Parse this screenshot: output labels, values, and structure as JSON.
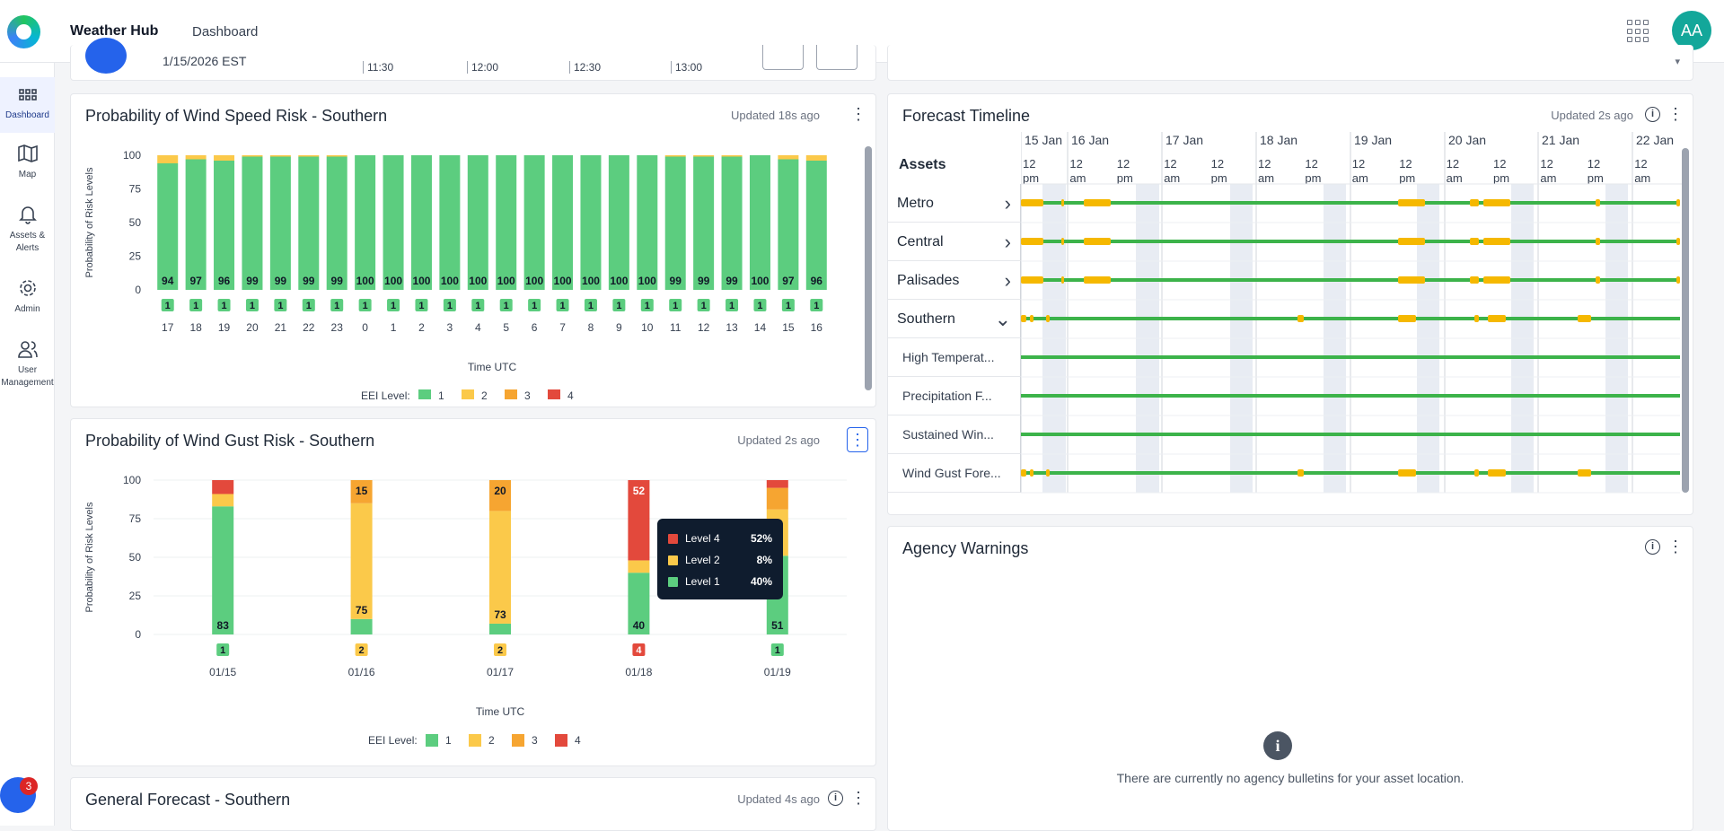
{
  "app": {
    "title": "Weather Hub",
    "breadcrumb": "Dashboard",
    "avatar_initials": "AA",
    "notification_count": "3"
  },
  "sidebar": {
    "items": [
      {
        "label": "Dashboard",
        "icon": "dashboard-grid-icon",
        "active": true
      },
      {
        "label": "Map",
        "icon": "map-icon"
      },
      {
        "label": "Assets & Alerts",
        "icon": "bell-icon"
      },
      {
        "label": "Admin",
        "icon": "gear-icon"
      },
      {
        "label": "User Management",
        "icon": "users-icon"
      }
    ]
  },
  "top_strip": {
    "date": "1/15/2026 EST",
    "times": [
      "11:30",
      "12:00",
      "12:30",
      "13:00"
    ]
  },
  "colors": {
    "level1": "#5ccd7f",
    "level2": "#fbc94a",
    "level3": "#f6a531",
    "level4": "#e3493c",
    "accent": "#2563eb",
    "avatar": "#13a79a"
  },
  "wind_speed": {
    "title": "Probability of Wind Speed Risk - Southern",
    "updated": "Updated 18s ago",
    "ylabel": "Probability of Risk Levels",
    "xlabel": "Time UTC",
    "legend_title": "EEI Level:",
    "legend": [
      "1",
      "2",
      "3",
      "4"
    ]
  },
  "wind_gust": {
    "title": "Probability of Wind Gust Risk - Southern",
    "updated": "Updated 2s ago",
    "ylabel": "Probability of Risk Levels",
    "xlabel": "Time UTC",
    "legend_title": "EEI Level:",
    "legend": [
      "1",
      "2",
      "3",
      "4"
    ],
    "tooltip": [
      {
        "label": "Level 4",
        "value": "52%",
        "level": 4
      },
      {
        "label": "Level 2",
        "value": "8%",
        "level": 2
      },
      {
        "label": "Level 1",
        "value": "40%",
        "level": 1
      }
    ]
  },
  "general_forecast": {
    "title": "General Forecast - Southern",
    "updated": "Updated 4s ago"
  },
  "forecast_timeline": {
    "title": "Forecast Timeline",
    "updated": "Updated 2s ago",
    "assets_header": "Assets",
    "days": [
      "15 Jan",
      "16 Jan",
      "17 Jan",
      "18 Jan",
      "19 Jan",
      "20 Jan",
      "21 Jan",
      "22 Jan"
    ],
    "assets": [
      {
        "label": "Metro",
        "expand": "›"
      },
      {
        "label": "Central",
        "expand": "›"
      },
      {
        "label": "Palisades",
        "expand": "›"
      },
      {
        "label": "Southern",
        "expand": "⌄"
      },
      {
        "label": "High Temperat..."
      },
      {
        "label": "Precipitation F..."
      },
      {
        "label": "Sustained Win..."
      },
      {
        "label": "Wind Gust Fore..."
      }
    ]
  },
  "agency_warnings": {
    "title": "Agency Warnings",
    "empty_message": "There are currently no agency bulletins for your asset location."
  },
  "chart_data": [
    {
      "type": "bar",
      "title": "Probability of Wind Speed Risk - Southern",
      "xlabel": "Time UTC",
      "ylabel": "Probability of Risk Levels",
      "ylim": [
        0,
        100
      ],
      "yticks": [
        0,
        25,
        50,
        75,
        100
      ],
      "categories": [
        "17",
        "18",
        "19",
        "20",
        "21",
        "22",
        "23",
        "0",
        "1",
        "2",
        "3",
        "4",
        "5",
        "6",
        "7",
        "8",
        "9",
        "10",
        "11",
        "12",
        "13",
        "14",
        "15",
        "16"
      ],
      "series": [
        {
          "name": "1",
          "values": [
            94,
            97,
            96,
            99,
            99,
            99,
            99,
            100,
            100,
            100,
            100,
            100,
            100,
            100,
            100,
            100,
            100,
            100,
            99,
            99,
            99,
            100,
            97,
            96
          ]
        },
        {
          "name": "2",
          "values": [
            6,
            3,
            4,
            1,
            1,
            1,
            1,
            0,
            0,
            0,
            0,
            0,
            0,
            0,
            0,
            0,
            0,
            0,
            1,
            1,
            1,
            0,
            3,
            4
          ]
        }
      ],
      "level_badges": [
        "1",
        "1",
        "1",
        "1",
        "1",
        "1",
        "1",
        "1",
        "1",
        "1",
        "1",
        "1",
        "1",
        "1",
        "1",
        "1",
        "1",
        "1",
        "1",
        "1",
        "1",
        "1",
        "1",
        "1"
      ],
      "legend_position": "bottom"
    },
    {
      "type": "bar",
      "title": "Probability of Wind Gust Risk - Southern",
      "xlabel": "Time UTC",
      "ylabel": "Probability of Risk Levels",
      "ylim": [
        0,
        100
      ],
      "yticks": [
        0,
        25,
        50,
        75,
        100
      ],
      "categories": [
        "01/15",
        "01/16",
        "01/17",
        "01/18",
        "01/19"
      ],
      "series": [
        {
          "name": "1",
          "values": [
            83,
            10,
            7,
            40,
            51
          ]
        },
        {
          "name": "2",
          "values": [
            8,
            75,
            73,
            8,
            30
          ]
        },
        {
          "name": "3",
          "values": [
            0,
            15,
            20,
            0,
            14
          ]
        },
        {
          "name": "4",
          "values": [
            9,
            0,
            0,
            52,
            5
          ]
        }
      ],
      "segment_labels": [
        [
          {
            "level": 1,
            "text": "83"
          }
        ],
        [
          {
            "level": 2,
            "text": "75"
          },
          {
            "level": 3,
            "text": "15"
          }
        ],
        [
          {
            "level": 2,
            "text": "73"
          },
          {
            "level": 3,
            "text": "20"
          }
        ],
        [
          {
            "level": 1,
            "text": "40"
          },
          {
            "level": 4,
            "text": "52"
          }
        ],
        [
          {
            "level": 1,
            "text": "51"
          }
        ]
      ],
      "level_badges": [
        "1",
        "2",
        "2",
        "4",
        "1"
      ],
      "legend_position": "bottom"
    }
  ]
}
